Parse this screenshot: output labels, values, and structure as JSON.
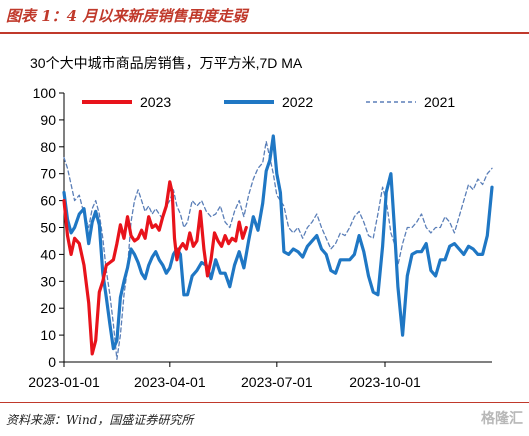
{
  "header": {
    "title": "图表 1：4 月以来新房销售再度走弱"
  },
  "footer": {
    "source": "资料来源：Wind，国盛证券研究所",
    "watermark": "格隆汇"
  },
  "colors": {
    "accent": "#c0392b",
    "s2023": "#e8131b",
    "s2022": "#1f77c4",
    "s2021": "#5b7fb8",
    "axis": "#000000"
  },
  "chart_data": {
    "type": "line",
    "title": "30个大中城市商品房销售，万平方米,7D MA",
    "ylim": [
      0,
      100
    ],
    "yticks": [
      0,
      10,
      20,
      30,
      40,
      50,
      60,
      70,
      80,
      90,
      100
    ],
    "xlim": [
      "2023-01-01",
      "2023-12-31"
    ],
    "xticks": [
      "2023-01-01",
      "2023-04-01",
      "2023-07-01",
      "2023-10-01"
    ],
    "legend": "top",
    "series": [
      {
        "name": "2023",
        "style": "solid-thick",
        "x": [
          "01-01",
          "01-04",
          "01-07",
          "01-10",
          "01-14",
          "01-18",
          "01-22",
          "01-25",
          "01-28",
          "01-31",
          "02-03",
          "02-06",
          "02-09",
          "02-12",
          "02-15",
          "02-18",
          "02-21",
          "02-24",
          "02-27",
          "03-02",
          "03-05",
          "03-08",
          "03-11",
          "03-14",
          "03-17",
          "03-20",
          "03-23",
          "03-26",
          "03-29",
          "04-01",
          "04-03",
          "04-05",
          "04-07",
          "04-09",
          "04-12",
          "04-15",
          "04-18",
          "04-21",
          "04-24",
          "04-27",
          "04-30",
          "05-03",
          "05-06",
          "05-09",
          "05-12",
          "05-15",
          "05-18",
          "05-21",
          "05-24",
          "05-27",
          "05-30",
          "06-02",
          "06-05"
        ],
        "values": [
          60,
          47,
          40,
          46,
          44,
          36,
          22,
          3,
          8,
          26,
          30,
          36,
          37,
          38,
          44,
          51,
          46,
          54,
          47,
          45,
          46,
          49,
          46,
          54,
          50,
          51,
          49,
          54,
          58,
          67,
          63,
          46,
          38,
          42,
          44,
          42,
          48,
          43,
          45,
          56,
          42,
          32,
          38,
          48,
          45,
          43,
          47,
          44,
          46,
          45,
          52,
          46,
          50
        ]
      },
      {
        "name": "2022",
        "style": "solid-thick",
        "x": [
          "01-01",
          "01-04",
          "01-07",
          "01-10",
          "01-14",
          "01-18",
          "01-22",
          "01-25",
          "01-28",
          "01-31",
          "02-03",
          "02-06",
          "02-09",
          "02-12",
          "02-15",
          "02-18",
          "02-21",
          "02-24",
          "02-27",
          "03-02",
          "03-05",
          "03-08",
          "03-11",
          "03-14",
          "03-17",
          "03-20",
          "03-23",
          "03-26",
          "03-29",
          "04-01",
          "04-04",
          "04-07",
          "04-10",
          "04-13",
          "04-16",
          "04-20",
          "04-24",
          "04-28",
          "05-02",
          "05-06",
          "05-10",
          "05-14",
          "05-18",
          "05-22",
          "05-26",
          "05-30",
          "06-03",
          "06-07",
          "06-11",
          "06-15",
          "06-19",
          "06-22",
          "06-25",
          "06-28",
          "07-01",
          "07-04",
          "07-07",
          "07-11",
          "07-15",
          "07-19",
          "07-23",
          "07-27",
          "07-31",
          "08-04",
          "08-08",
          "08-12",
          "08-16",
          "08-20",
          "08-24",
          "08-28",
          "09-01",
          "09-05",
          "09-09",
          "09-13",
          "09-17",
          "09-21",
          "09-25",
          "09-29",
          "10-02",
          "10-06",
          "10-09",
          "10-12",
          "10-16",
          "10-20",
          "10-24",
          "10-28",
          "11-01",
          "11-05",
          "11-09",
          "11-13",
          "11-17",
          "11-21",
          "11-25",
          "11-29",
          "12-03",
          "12-07",
          "12-11",
          "12-15",
          "12-19",
          "12-23",
          "12-27",
          "12-31"
        ],
        "values": [
          63,
          53,
          48,
          50,
          55,
          57,
          44,
          52,
          56,
          51,
          33,
          24,
          14,
          5,
          8,
          24,
          30,
          35,
          42,
          40,
          37,
          33,
          31,
          36,
          39,
          41,
          38,
          36,
          33,
          35,
          40,
          42,
          40,
          25,
          25,
          32,
          34,
          37,
          36,
          31,
          38,
          33,
          33,
          28,
          36,
          41,
          35,
          45,
          54,
          49,
          59,
          71,
          75,
          84,
          70,
          63,
          41,
          40,
          42,
          41,
          39,
          43,
          45,
          47,
          42,
          40,
          34,
          33,
          38,
          38,
          38,
          40,
          47,
          41,
          32,
          26,
          25,
          43,
          63,
          70,
          50,
          28,
          10,
          32,
          40,
          41,
          41,
          44,
          34,
          32,
          38,
          38,
          43,
          44,
          42,
          40,
          43,
          42,
          40,
          40,
          47,
          65
        ]
      },
      {
        "name": "2021",
        "style": "dashed",
        "x": [
          "01-01",
          "01-04",
          "01-07",
          "01-10",
          "01-14",
          "01-18",
          "01-22",
          "01-25",
          "01-28",
          "01-31",
          "02-03",
          "02-06",
          "02-09",
          "02-12",
          "02-15",
          "02-18",
          "02-21",
          "02-24",
          "02-27",
          "03-02",
          "03-05",
          "03-08",
          "03-11",
          "03-14",
          "03-17",
          "03-20",
          "03-23",
          "03-26",
          "03-29",
          "04-01",
          "04-04",
          "04-07",
          "04-10",
          "04-13",
          "04-16",
          "04-20",
          "04-24",
          "04-28",
          "05-02",
          "05-06",
          "05-10",
          "05-14",
          "05-18",
          "05-22",
          "05-26",
          "05-30",
          "06-03",
          "06-07",
          "06-11",
          "06-15",
          "06-19",
          "06-22",
          "06-25",
          "06-28",
          "07-01",
          "07-04",
          "07-07",
          "07-11",
          "07-15",
          "07-19",
          "07-23",
          "07-27",
          "07-31",
          "08-04",
          "08-08",
          "08-12",
          "08-16",
          "08-20",
          "08-24",
          "08-28",
          "09-01",
          "09-05",
          "09-09",
          "09-13",
          "09-17",
          "09-21",
          "09-25",
          "09-29",
          "10-02",
          "10-06",
          "10-09",
          "10-12",
          "10-16",
          "10-20",
          "10-24",
          "10-28",
          "11-01",
          "11-05",
          "11-09",
          "11-13",
          "11-17",
          "11-21",
          "11-25",
          "11-29",
          "12-03",
          "12-07",
          "12-11",
          "12-15",
          "12-19",
          "12-23",
          "12-27",
          "12-31"
        ],
        "values": [
          76,
          72,
          66,
          60,
          62,
          55,
          50,
          57,
          60,
          55,
          46,
          34,
          25,
          14,
          1,
          10,
          25,
          35,
          52,
          60,
          64,
          60,
          56,
          58,
          55,
          57,
          55,
          53,
          58,
          60,
          64,
          58,
          55,
          50,
          52,
          60,
          58,
          60,
          56,
          54,
          55,
          58,
          52,
          50,
          56,
          60,
          54,
          62,
          68,
          72,
          74,
          82,
          76,
          70,
          62,
          60,
          58,
          50,
          48,
          50,
          46,
          50,
          52,
          55,
          50,
          46,
          42,
          44,
          48,
          47,
          50,
          54,
          56,
          52,
          47,
          46,
          55,
          65,
          60,
          48,
          44,
          36,
          44,
          50,
          50,
          52,
          55,
          50,
          48,
          50,
          50,
          54,
          52,
          48,
          54,
          60,
          66,
          64,
          68,
          66,
          70,
          72
        ]
      }
    ]
  }
}
